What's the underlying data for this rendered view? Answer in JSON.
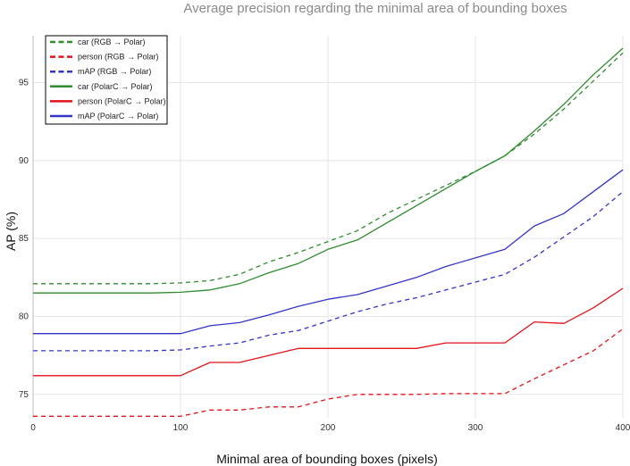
{
  "chart_data": {
    "type": "line",
    "title": "Average precision regarding the minimal area of bounding boxes",
    "xlabel": "Minimal area of bounding boxes (pixels)",
    "ylabel": "AP (%)",
    "xlim": [
      0,
      400
    ],
    "ylim": [
      73.5,
      98
    ],
    "xticks": [
      0,
      100,
      200,
      300,
      400
    ],
    "yticks": [
      75,
      80,
      85,
      90,
      95
    ],
    "grid": true,
    "legend_position": "top-left",
    "x": [
      0,
      20,
      40,
      60,
      80,
      100,
      120,
      140,
      160,
      180,
      200,
      220,
      240,
      260,
      280,
      300,
      320,
      340,
      360,
      380,
      400
    ],
    "series": [
      {
        "name": "car (RGB → Polar)",
        "color": "#2e8b2e",
        "dash": true,
        "values": [
          82.1,
          82.1,
          82.1,
          82.1,
          82.1,
          82.15,
          82.3,
          82.7,
          83.5,
          84.1,
          84.8,
          85.5,
          86.6,
          87.5,
          88.4,
          89.3,
          90.3,
          91.7,
          93.3,
          95.1,
          96.9
        ]
      },
      {
        "name": "person (RGB → Polar)",
        "color": "#e3121b",
        "dash": true,
        "values": [
          73.6,
          73.6,
          73.6,
          73.6,
          73.6,
          73.6,
          74.0,
          74.0,
          74.2,
          74.2,
          74.7,
          75.0,
          75.0,
          75.0,
          75.05,
          75.05,
          75.05,
          76.0,
          76.9,
          77.8,
          79.2
        ]
      },
      {
        "name": "mAP (RGB → Polar)",
        "color": "#3434c8",
        "dash": true,
        "values": [
          77.8,
          77.8,
          77.8,
          77.8,
          77.8,
          77.85,
          78.1,
          78.3,
          78.8,
          79.1,
          79.7,
          80.3,
          80.8,
          81.2,
          81.7,
          82.2,
          82.7,
          83.8,
          85.1,
          86.4,
          88.0
        ]
      },
      {
        "name": "car (PolarC → Polar)",
        "color": "#2e8b2e",
        "dash": false,
        "values": [
          81.5,
          81.5,
          81.5,
          81.5,
          81.5,
          81.55,
          81.7,
          82.1,
          82.8,
          83.4,
          84.3,
          84.9,
          86.0,
          87.1,
          88.2,
          89.3,
          90.3,
          91.9,
          93.6,
          95.5,
          97.2
        ]
      },
      {
        "name": "person (PolarC → Polar)",
        "color": "#e3121b",
        "dash": false,
        "values": [
          76.2,
          76.2,
          76.2,
          76.2,
          76.2,
          76.2,
          77.05,
          77.05,
          77.5,
          77.95,
          77.95,
          77.95,
          77.95,
          77.95,
          78.3,
          78.3,
          78.3,
          79.65,
          79.55,
          80.55,
          81.8
        ]
      },
      {
        "name": "mAP (PolarC → Polar)",
        "color": "#3434c8",
        "dash": false,
        "values": [
          78.9,
          78.9,
          78.9,
          78.9,
          78.9,
          78.9,
          79.4,
          79.6,
          80.1,
          80.65,
          81.1,
          81.4,
          81.95,
          82.5,
          83.2,
          83.75,
          84.3,
          85.8,
          86.6,
          88.0,
          89.4
        ]
      }
    ]
  }
}
